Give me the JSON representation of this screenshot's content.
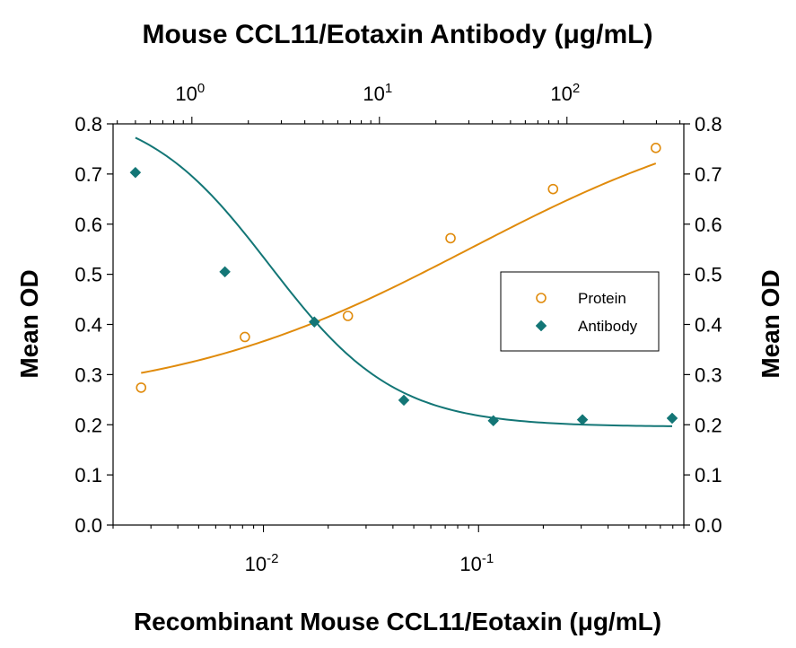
{
  "chart_data": {
    "type": "scatter",
    "title": "Mouse CCL11/Eotaxin Antibody (μg/mL)",
    "xlabel": "Recombinant Mouse CCL11/Eotaxin (μg/mL)",
    "ylabel_left": "Mean OD",
    "ylabel_right": "Mean OD",
    "x_scale": "log",
    "xlim": [
      0.002,
      0.9
    ],
    "x_ticks": [
      {
        "value": 0.01,
        "base": "10",
        "exp": "-2"
      },
      {
        "value": 0.1,
        "base": "10",
        "exp": "-1"
      }
    ],
    "x2_scale": "log",
    "x2lim": [
      0.38,
      420
    ],
    "x2_ticks": [
      {
        "value": 1,
        "base": "10",
        "exp": "0"
      },
      {
        "value": 10,
        "base": "10",
        "exp": "1"
      },
      {
        "value": 100,
        "base": "10",
        "exp": "2"
      }
    ],
    "ylim": [
      0,
      0.8
    ],
    "y_ticks": [
      "0.0",
      "0.1",
      "0.2",
      "0.3",
      "0.4",
      "0.5",
      "0.6",
      "0.7",
      "0.8"
    ],
    "grid": false,
    "legend_position": "right",
    "series": [
      {
        "name": "Protein",
        "marker": "open-circle",
        "color": "#e08b0c",
        "axis": "bottom",
        "points": [
          {
            "x": 0.0027,
            "y": 0.274
          },
          {
            "x": 0.0082,
            "y": 0.375
          },
          {
            "x": 0.0247,
            "y": 0.417
          },
          {
            "x": 0.0741,
            "y": 0.572
          },
          {
            "x": 0.222,
            "y": 0.67
          },
          {
            "x": 0.667,
            "y": 0.752
          }
        ],
        "fit": {
          "bottom": 0.24,
          "top": 0.86,
          "ec50": 0.09,
          "hill": 0.62
        }
      },
      {
        "name": "Antibody",
        "marker": "filled-diamond",
        "color": "#137676",
        "axis": "top",
        "points": [
          {
            "x": 0.5,
            "y": 0.703
          },
          {
            "x": 1.5,
            "y": 0.505
          },
          {
            "x": 4.5,
            "y": 0.405
          },
          {
            "x": 13.5,
            "y": 0.249
          },
          {
            "x": 40.5,
            "y": 0.208
          },
          {
            "x": 121,
            "y": 0.21
          },
          {
            "x": 364,
            "y": 0.213
          }
        ],
        "fit": {
          "bottom": 0.196,
          "top": 0.84,
          "ec50": 2.6,
          "hill": -1.3
        }
      }
    ]
  }
}
